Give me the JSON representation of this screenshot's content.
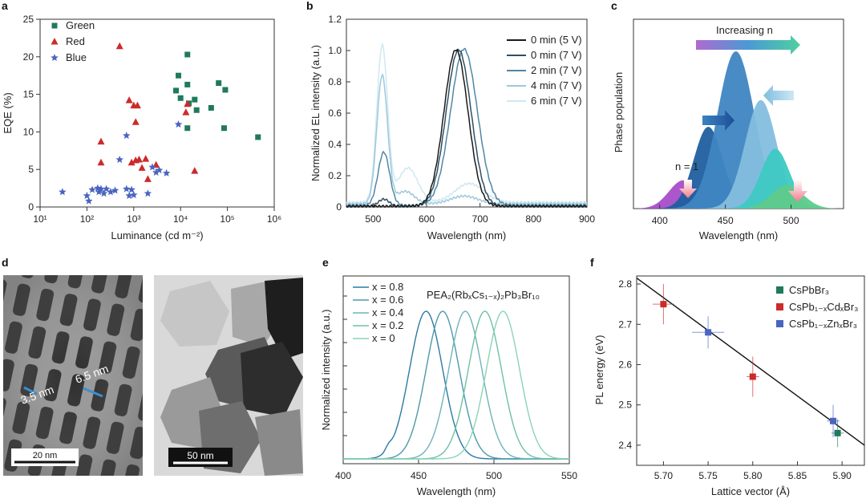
{
  "panel_labels": [
    "a",
    "b",
    "c",
    "d",
    "e",
    "f"
  ],
  "chart_data": [
    {
      "id": "a",
      "type": "scatter",
      "xscale": "log",
      "xlabel": "Luminance (cd m⁻²)",
      "ylabel": "EQE (%)",
      "xlim": [
        10,
        1000000
      ],
      "ylim": [
        0,
        25
      ],
      "xticks": [
        "10¹",
        "10²",
        "10³",
        "10⁴",
        "10⁵",
        "10⁶"
      ],
      "yticks": [
        "0",
        "5",
        "10",
        "15",
        "20",
        "25"
      ],
      "legend_position": "top-left",
      "series": [
        {
          "name": "Green",
          "color": "#1f7a5c",
          "marker": "square",
          "points": [
            [
              14000,
              20.3
            ],
            [
              9000,
              17.5
            ],
            [
              14000,
              16.3
            ],
            [
              8000,
              15.5
            ],
            [
              65000,
              16.5
            ],
            [
              90000,
              15.6
            ],
            [
              20000,
              14.3
            ],
            [
              15000,
              13.8
            ],
            [
              10000,
              14.5
            ],
            [
              45000,
              13.2
            ],
            [
              22000,
              12.9
            ],
            [
              14000,
              10.5
            ],
            [
              85000,
              10.5
            ],
            [
              450000,
              9.3
            ]
          ]
        },
        {
          "name": "Red",
          "color": "#cc2b2b",
          "marker": "triangle",
          "points": [
            [
              500,
              21.4
            ],
            [
              800,
              14.2
            ],
            [
              1000,
              13.5
            ],
            [
              1200,
              13.5
            ],
            [
              1100,
              11.3
            ],
            [
              200,
              8.7
            ],
            [
              200,
              5.9
            ],
            [
              900,
              5.9
            ],
            [
              1100,
              6.2
            ],
            [
              1300,
              6.3
            ],
            [
              1800,
              6.4
            ],
            [
              1500,
              5.2
            ],
            [
              2000,
              3.7
            ],
            [
              3000,
              5.6
            ],
            [
              20000,
              4.8
            ],
            [
              13000,
              12.6
            ],
            [
              14000,
              13.7
            ]
          ]
        },
        {
          "name": "Blue",
          "color": "#4a64c0",
          "marker": "star",
          "points": [
            [
              30,
              2.0
            ],
            [
              100,
              1.5
            ],
            [
              110,
              0.8
            ],
            [
              130,
              2.3
            ],
            [
              170,
              2.5
            ],
            [
              180,
              2.0
            ],
            [
              200,
              2.4
            ],
            [
              230,
              1.8
            ],
            [
              260,
              2.4
            ],
            [
              320,
              2.0
            ],
            [
              400,
              2.2
            ],
            [
              500,
              6.3
            ],
            [
              700,
              2.4
            ],
            [
              900,
              2.3
            ],
            [
              800,
              1.5
            ],
            [
              1000,
              1.6
            ],
            [
              700,
              9.5
            ],
            [
              2000,
              1.8
            ],
            [
              2500,
              5.3
            ],
            [
              3000,
              4.6
            ],
            [
              3500,
              4.9
            ],
            [
              5000,
              4.5
            ],
            [
              9000,
              11.0
            ]
          ]
        }
      ]
    },
    {
      "id": "b",
      "type": "line",
      "xlabel": "Wavelength (nm)",
      "ylabel": "Normalized EL intensity (a.u.)",
      "xlim": [
        450,
        900
      ],
      "ylim": [
        0,
        1.2
      ],
      "xticks": [
        "500",
        "600",
        "700",
        "800",
        "900"
      ],
      "yticks": [
        "0",
        "0.2",
        "0.4",
        "0.6",
        "0.8",
        "1.0",
        "1.2"
      ],
      "legend_position": "top-right",
      "series": [
        {
          "name": "0 min (5 V)",
          "color": "#1a1a1a",
          "peaks": [
            [
              655,
              1.0,
              27
            ]
          ],
          "baseline": 0.005
        },
        {
          "name": "0 min (7 V)",
          "color": "#2f4f63",
          "peaks": [
            [
              520,
              0.045,
              12
            ],
            [
              660,
              1.0,
              28
            ]
          ],
          "baseline": 0.005
        },
        {
          "name": "2 min (7 V)",
          "color": "#4f87a6",
          "peaks": [
            [
              520,
              0.34,
              13
            ],
            [
              670,
              1.0,
              30
            ]
          ],
          "baseline": 0.01
        },
        {
          "name": "4 min (7 V)",
          "color": "#9ec8dc",
          "peaks": [
            [
              517,
              0.82,
              12
            ],
            [
              560,
              0.08,
              20
            ],
            [
              670,
              0.05,
              30
            ]
          ],
          "baseline": 0.02
        },
        {
          "name": "6 min (7 V)",
          "color": "#cfe8f2",
          "peaks": [
            [
              517,
              1.0,
              12
            ],
            [
              565,
              0.22,
              22
            ],
            [
              680,
              0.12,
              32
            ]
          ],
          "baseline": 0.03
        }
      ]
    },
    {
      "id": "c",
      "type": "area",
      "xlabel": "Wavelength (nm)",
      "ylabel": "Phase population",
      "xlim": [
        380,
        540
      ],
      "xticks": [
        "400",
        "450",
        "500"
      ],
      "annotations": [
        "Increasing n",
        "n = 1"
      ],
      "series": [
        {
          "color": "#a64dc8",
          "center": 418,
          "height": 0.18,
          "width": 11
        },
        {
          "color": "#1f5f9f",
          "center": 437,
          "height": 0.52,
          "width": 11
        },
        {
          "color": "#3f86c2",
          "center": 458,
          "height": 1.0,
          "width": 14
        },
        {
          "color": "#84bedf",
          "center": 477,
          "height": 0.69,
          "width": 12
        },
        {
          "color": "#3ec9c3",
          "center": 488,
          "height": 0.38,
          "width": 11
        },
        {
          "color": "#5fcb8a",
          "center": 497,
          "height": 0.15,
          "width": 12
        }
      ]
    },
    {
      "id": "e",
      "type": "line",
      "title": "PEA₂(RbₓCs₁₋ₓ)₂Pb₃Br₁₀",
      "xlabel": "Wavelength (nm)",
      "ylabel": "Normalized intensity (a.u.)",
      "xlim": [
        400,
        550
      ],
      "xticks": [
        "400",
        "450",
        "500",
        "550"
      ],
      "legend_position": "top-left",
      "series": [
        {
          "name": "x = 0.8",
          "color": "#2c7aa3",
          "center": 455
        },
        {
          "name": "x = 0.6",
          "color": "#4c9aaa",
          "center": 466
        },
        {
          "name": "x = 0.4",
          "color": "#6fb3bb",
          "center": 481
        },
        {
          "name": "x = 0.2",
          "color": "#6ec1a6",
          "center": 494
        },
        {
          "name": "x = 0",
          "color": "#8ad4b4",
          "center": 506
        }
      ]
    },
    {
      "id": "f",
      "type": "scatter",
      "xlabel": "Lattice vector (Å)",
      "ylabel": "PL energy (eV)",
      "xlim": [
        5.67,
        5.925
      ],
      "ylim": [
        2.35,
        2.82
      ],
      "xticks": [
        "5.70",
        "5.75",
        "5.80",
        "5.85",
        "5.90"
      ],
      "yticks": [
        "2.4",
        "2.5",
        "2.6",
        "2.7",
        "2.8"
      ],
      "legend_position": "top-right",
      "fit_line": [
        [
          5.67,
          2.815
        ],
        [
          5.925,
          2.4
        ]
      ],
      "series": [
        {
          "name": "CsPbBr₃",
          "color": "#1f7a5c",
          "points": [
            [
              5.895,
              2.43,
              0.007,
              0.035
            ]
          ]
        },
        {
          "name": "CsPb₁₋ₓCdₓBr₃",
          "color": "#cc2b2b",
          "points": [
            [
              5.7,
              2.75,
              0.012,
              0.05
            ],
            [
              5.8,
              2.57,
              0.007,
              0.05
            ]
          ]
        },
        {
          "name": "CsPb₁₋ₓZnₓBr₃",
          "color": "#4a64c0",
          "points": [
            [
              5.75,
              2.68,
              0.018,
              0.04
            ],
            [
              5.89,
              2.46,
              0.007,
              0.04
            ]
          ]
        }
      ]
    }
  ],
  "micrographs": [
    {
      "scale_bar": "20 nm",
      "labels": [
        "3.5 nm",
        "6.5 nm"
      ]
    },
    {
      "scale_bar": "50 nm"
    }
  ]
}
